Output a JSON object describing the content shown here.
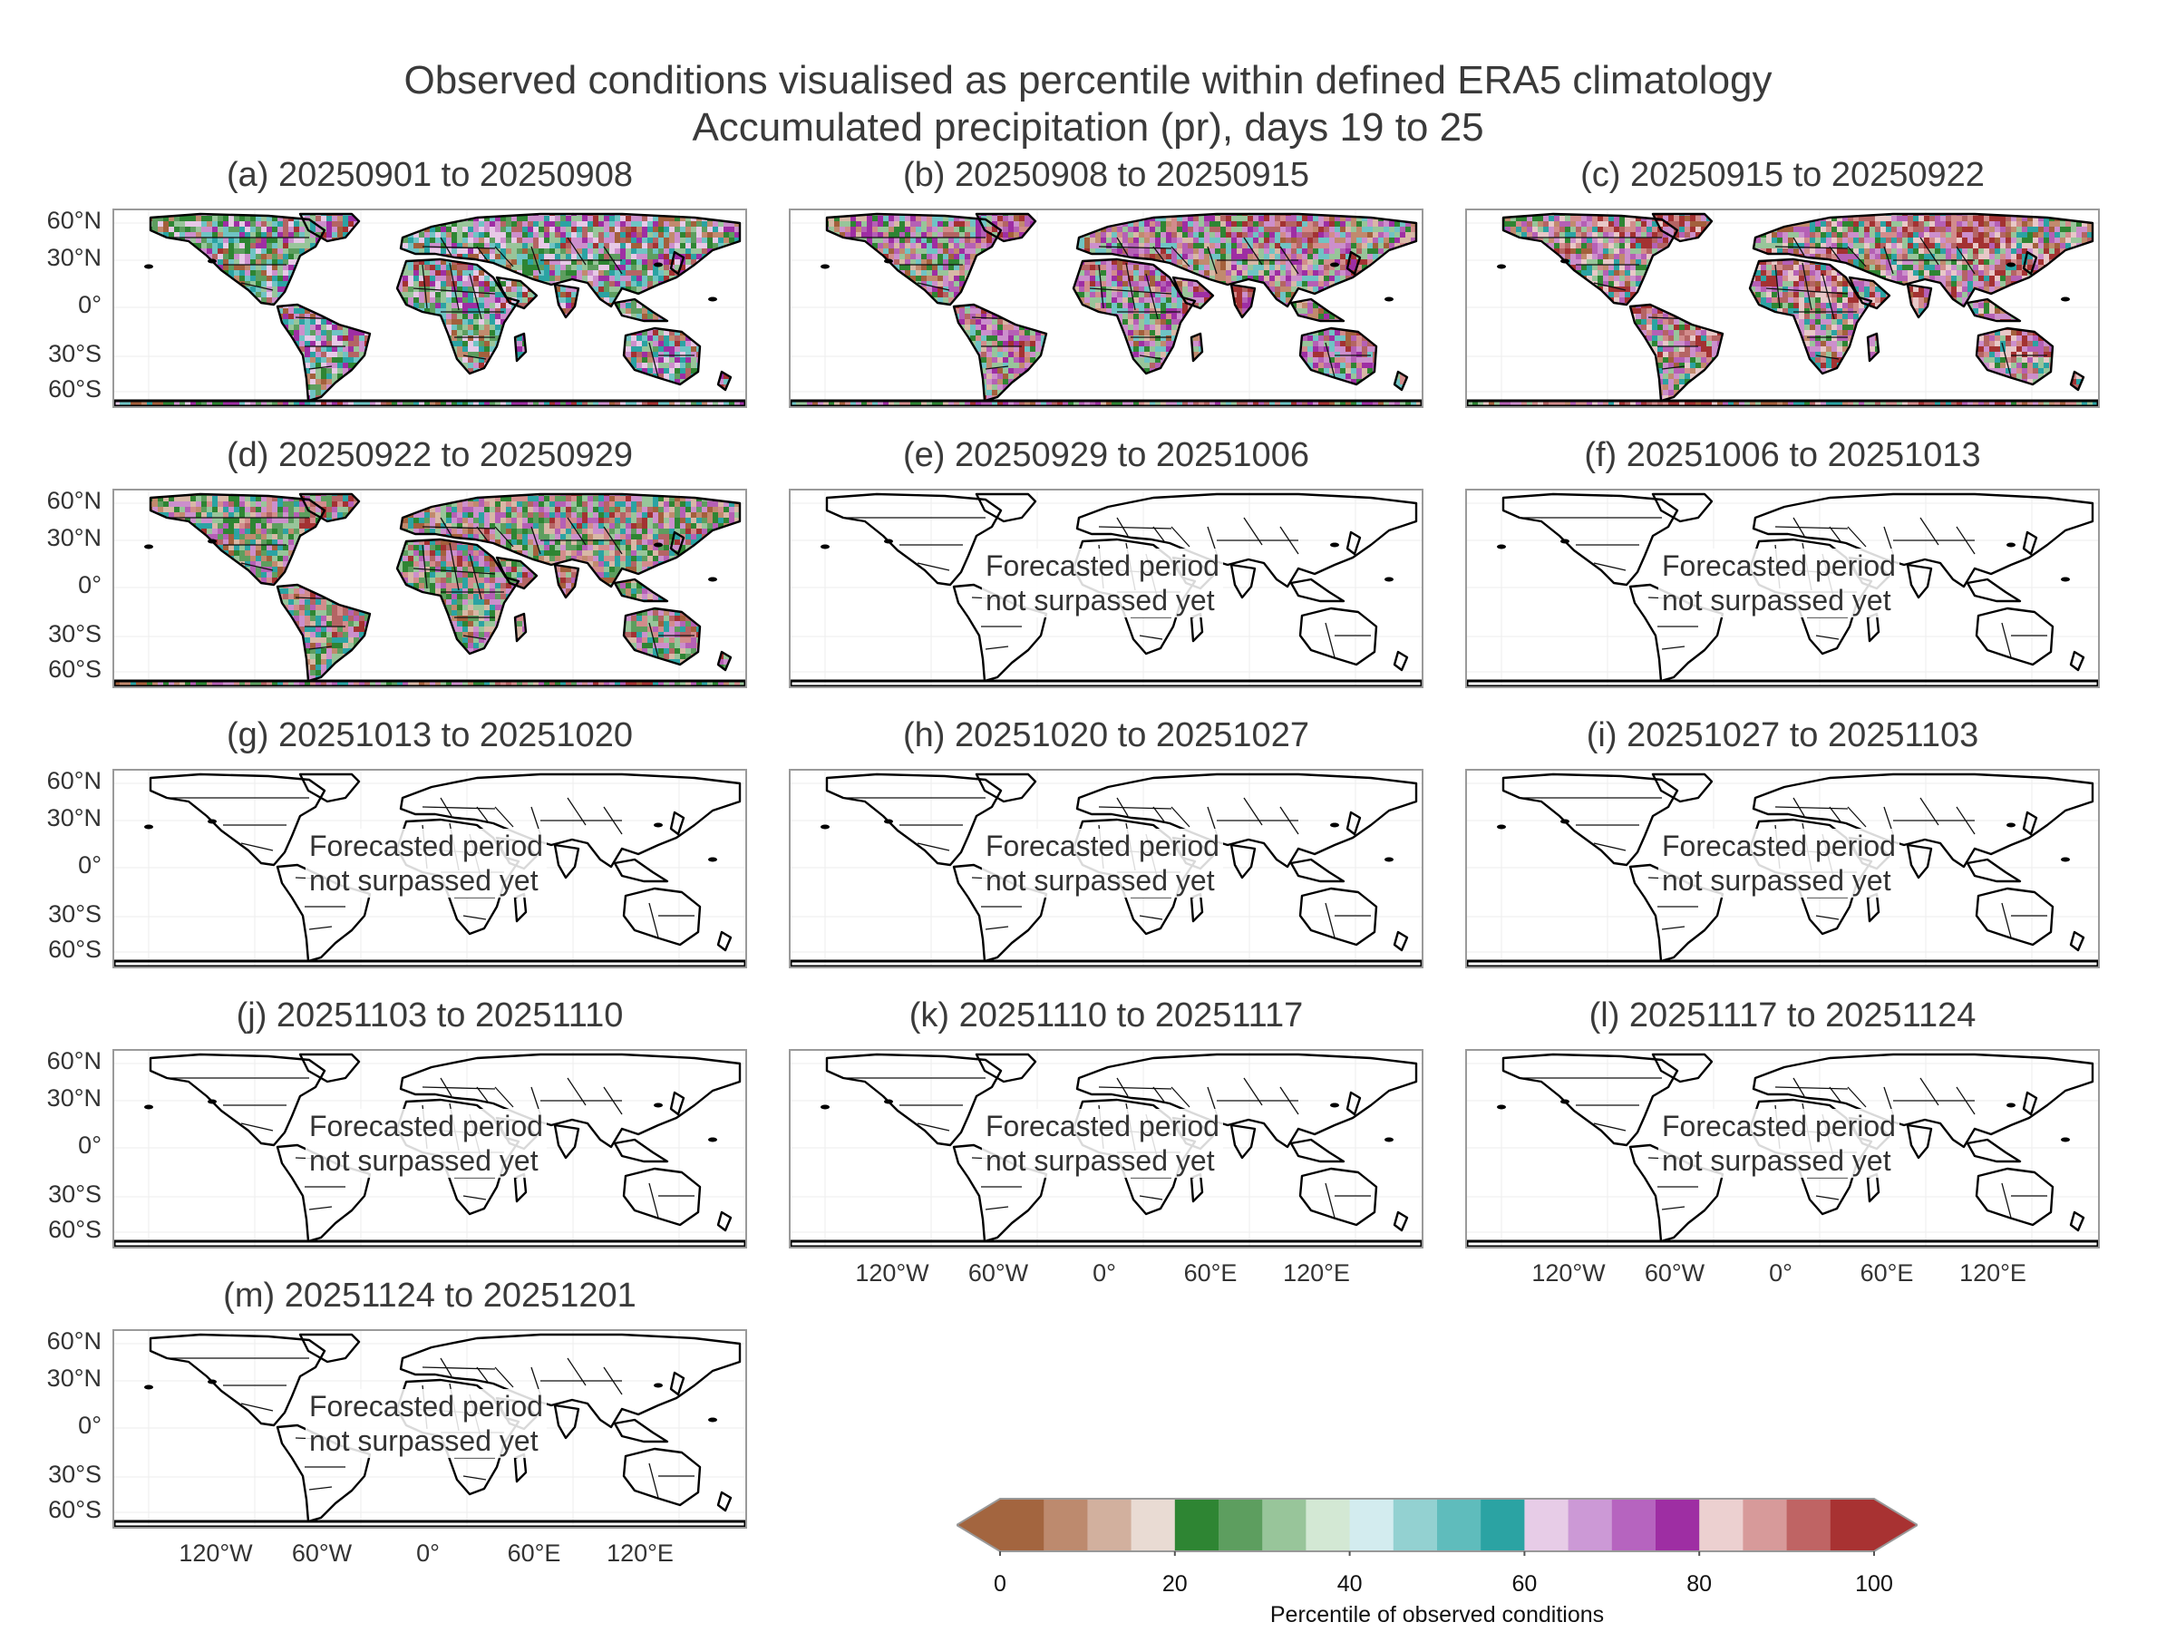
{
  "figure": {
    "title_line1": "Observed conditions visualised as percentile within defined ERA5 climatology",
    "title_line2": "Accumulated precipitation (pr), days 19 to 25"
  },
  "overlay_text": {
    "line1": "Forecasted period",
    "line2": "not surpassed yet"
  },
  "lat_labels": [
    "60°N",
    "30°N",
    "0°",
    "30°S",
    "60°S"
  ],
  "lon_labels": [
    "120°W",
    "60°W",
    "0°",
    "60°E",
    "120°E"
  ],
  "panels": [
    {
      "label": "(a) 20250901 to 20250908",
      "observed": true,
      "palette": [
        "#a3603c",
        "#c18a6e",
        "#2e8533",
        "#5d9e5f",
        "#98c59a",
        "#2ba3a3",
        "#6fc4c4",
        "#e7c9e7",
        "#cc8fcc",
        "#9e2ea3",
        "#b46464",
        "#a33232"
      ]
    },
    {
      "label": "(b) 20250908 to 20250915",
      "observed": true,
      "palette": [
        "#a3603c",
        "#c18a6e",
        "#d8b8a6",
        "#2e8533",
        "#98c59a",
        "#6fc4c4",
        "#cc8fcc",
        "#b560b5",
        "#9e2ea3",
        "#d28c8c",
        "#b46464",
        "#a33232"
      ]
    },
    {
      "label": "(c) 20250915 to 20250922",
      "observed": true,
      "palette": [
        "#a3603c",
        "#c18a6e",
        "#2e8533",
        "#98c59a",
        "#2ba3a3",
        "#cc8fcc",
        "#b560b5",
        "#e8c8c8",
        "#d28c8c",
        "#b46464",
        "#a33232",
        "#a33232"
      ]
    },
    {
      "label": "(d) 20250922 to 20250929",
      "observed": true,
      "palette": [
        "#a3603c",
        "#c18a6e",
        "#d8b8a6",
        "#2e8533",
        "#5d9e5f",
        "#98c59a",
        "#2ba3a3",
        "#cc8fcc",
        "#b560b5",
        "#d28c8c",
        "#b46464",
        "#a33232"
      ]
    },
    {
      "label": "(e) 20250929 to 20251006",
      "observed": false
    },
    {
      "label": "(f) 20251006 to 20251013",
      "observed": false
    },
    {
      "label": "(g) 20251013 to 20251020",
      "observed": false
    },
    {
      "label": "(h) 20251020 to 20251027",
      "observed": false
    },
    {
      "label": "(i) 20251027 to 20251103",
      "observed": false
    },
    {
      "label": "(j) 20251103 to 20251110",
      "observed": false
    },
    {
      "label": "(k) 20251110 to 20251117",
      "observed": false
    },
    {
      "label": "(l) 20251117 to 20251124",
      "observed": false
    },
    {
      "label": "(m) 20251124 to 20251201",
      "observed": false
    }
  ],
  "colorbar": {
    "label": "Percentile of observed conditions",
    "ticks": [
      "0",
      "20",
      "40",
      "60",
      "80",
      "100"
    ],
    "tick_values": [
      0,
      20,
      40,
      60,
      80,
      100
    ],
    "range": [
      0,
      100
    ],
    "under_color": "#a3653f",
    "over_color": "#a83232",
    "colors": [
      "#a3653f",
      "#bd8a6e",
      "#d2b09e",
      "#e9dbd3",
      "#2e8533",
      "#5d9e5f",
      "#98c59a",
      "#d3e8d4",
      "#d3ecef",
      "#93d1d1",
      "#5fbcbc",
      "#2ba3a3",
      "#e7cce7",
      "#cc99d6",
      "#b664bf",
      "#9e2ea3",
      "#ecd0d0",
      "#d79a9a",
      "#bf6464",
      "#a83232"
    ]
  }
}
